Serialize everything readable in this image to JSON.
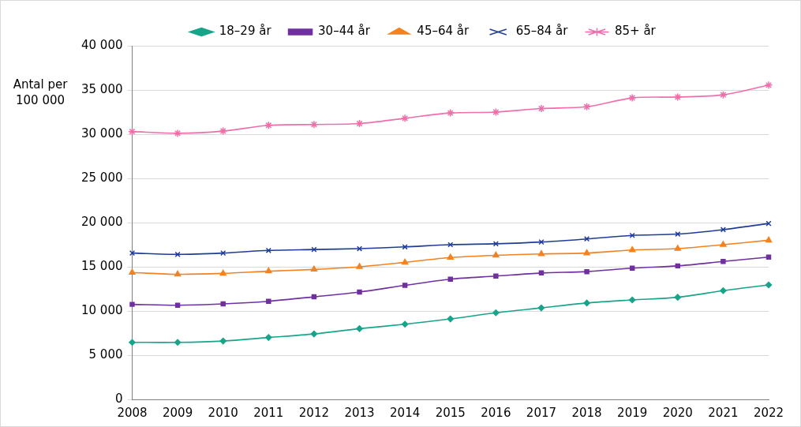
{
  "chart_data": {
    "type": "line",
    "y_label": "Antal per 100 000",
    "categories": [
      "2008",
      "2009",
      "2010",
      "2011",
      "2012",
      "2013",
      "2014",
      "2015",
      "2016",
      "2017",
      "2018",
      "2019",
      "2020",
      "2021",
      "2022"
    ],
    "series": [
      {
        "name": "18–29 år",
        "color": "#17a589",
        "marker": "diamond",
        "values": [
          6450,
          6450,
          6600,
          7000,
          7400,
          8000,
          8500,
          9100,
          9800,
          10350,
          10900,
          11250,
          11550,
          12300,
          12950
        ]
      },
      {
        "name": "30–44 år",
        "color": "#7030a0",
        "marker": "square",
        "values": [
          10750,
          10650,
          10800,
          11100,
          11600,
          12150,
          12900,
          13600,
          13950,
          14300,
          14450,
          14850,
          15100,
          15600,
          16100
        ]
      },
      {
        "name": "45–64 år",
        "color": "#f58220",
        "marker": "triangle",
        "values": [
          14350,
          14150,
          14250,
          14500,
          14700,
          15000,
          15500,
          16050,
          16300,
          16450,
          16550,
          16900,
          17050,
          17500,
          18000
        ]
      },
      {
        "name": "65–84 år",
        "color": "#1f3c99",
        "marker": "x",
        "values": [
          16550,
          16400,
          16550,
          16850,
          16950,
          17050,
          17250,
          17500,
          17600,
          17800,
          18150,
          18550,
          18700,
          19200,
          19900
        ]
      },
      {
        "name": "85+ år",
        "color": "#f06eaa",
        "marker": "star",
        "values": [
          30300,
          30100,
          30350,
          31000,
          31100,
          31200,
          31800,
          32400,
          32500,
          32900,
          33100,
          34100,
          34200,
          34450,
          35550
        ]
      }
    ],
    "ylim": [
      0,
      40000
    ],
    "yticks": [
      0,
      {
        "value": 5000,
        "label": "5 000"
      },
      {
        "value": 10000,
        "label": "10 000"
      },
      {
        "value": 15000,
        "label": "15 000"
      },
      {
        "value": 20000,
        "label": "20 000"
      },
      {
        "value": 25000,
        "label": "25 000"
      },
      {
        "value": 30000,
        "label": "30 000"
      },
      {
        "value": 35000,
        "label": "35 000"
      },
      {
        "value": 40000,
        "label": "40 000"
      }
    ],
    "grid": true,
    "legend": "top"
  }
}
